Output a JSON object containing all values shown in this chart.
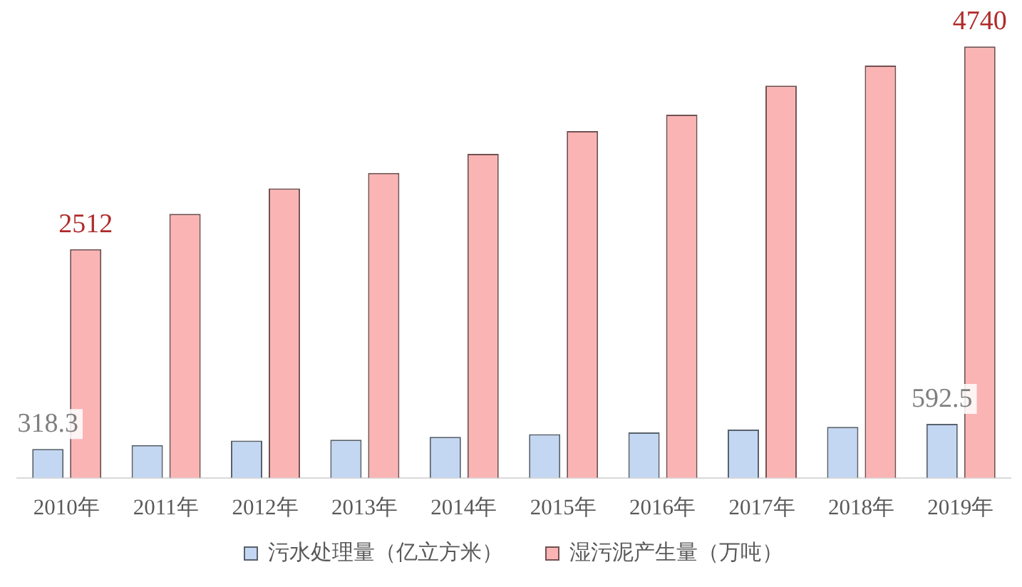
{
  "chart_data": {
    "type": "bar",
    "categories": [
      "2010年",
      "2011年",
      "2012年",
      "2013年",
      "2014年",
      "2015年",
      "2016年",
      "2017年",
      "2018年",
      "2019年"
    ],
    "series": [
      {
        "name": "污水处理量（亿立方米）",
        "color": "#c3d7f2",
        "values": [
          318.3,
          360,
          410,
          420,
          450,
          480,
          500,
          530,
          560,
          592.5
        ],
        "value_labels": [
          "318.3",
          null,
          null,
          null,
          null,
          null,
          null,
          null,
          null,
          "592.5"
        ]
      },
      {
        "name": "湿污泥产生量（万吨）",
        "color": "#fbb4b4",
        "values": [
          2512,
          2900,
          3180,
          3350,
          3560,
          3810,
          3990,
          4310,
          4530,
          4740
        ],
        "value_labels": [
          "2512",
          null,
          null,
          null,
          null,
          null,
          null,
          null,
          null,
          "4740"
        ]
      }
    ],
    "tick_labels": "x",
    "grid": false,
    "legend": "bottom"
  }
}
